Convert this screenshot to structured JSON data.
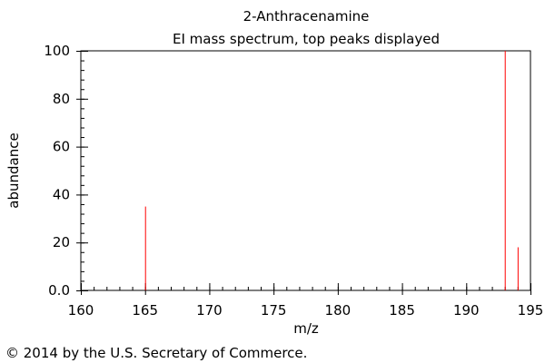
{
  "chart_data": {
    "type": "bar",
    "title": "2-Anthracenamine",
    "subtitle": "EI mass spectrum, top peaks displayed",
    "xlabel": "m/z",
    "ylabel": "abundance",
    "xlim": [
      160,
      195
    ],
    "ylim": [
      0,
      100
    ],
    "x_ticks": [
      160,
      165,
      170,
      175,
      180,
      185,
      190,
      195
    ],
    "y_ticks": [
      "0.0",
      "20",
      "40",
      "60",
      "80",
      "100"
    ],
    "peaks": [
      {
        "mz": 165,
        "abundance": 35
      },
      {
        "mz": 193,
        "abundance": 100
      },
      {
        "mz": 194,
        "abundance": 18
      }
    ],
    "grid": false,
    "peak_color": "#ff0000"
  },
  "footer": {
    "copyright": "© 2014 by the U.S. Secretary of Commerce."
  }
}
